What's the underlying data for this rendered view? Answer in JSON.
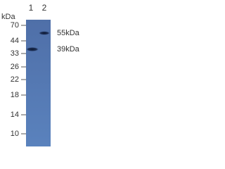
{
  "unit_label": "kDa",
  "lanes": [
    "1",
    "2"
  ],
  "markers": [
    "70",
    "44",
    "33",
    "26",
    "22",
    "18",
    "14",
    "10"
  ],
  "bands": [
    "55kDa",
    "39kDa"
  ]
}
